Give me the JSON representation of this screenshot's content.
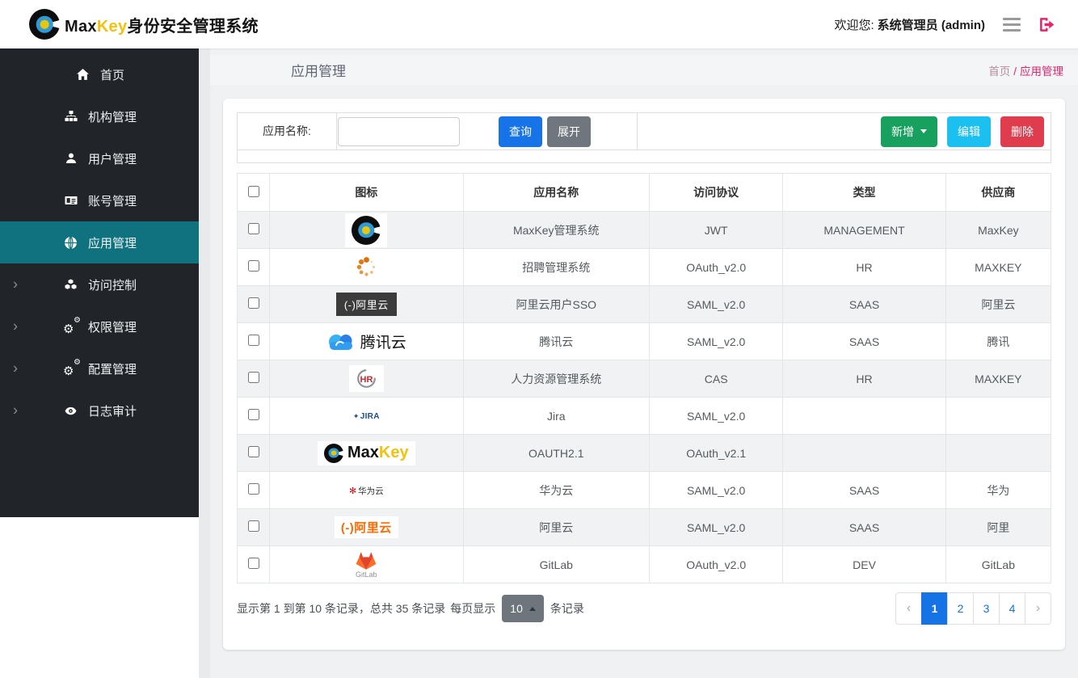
{
  "topbar": {
    "brand_max": "Max",
    "brand_key": "Key",
    "brand_suffix": "身份安全管理系统",
    "welcome_prefix": "欢迎您:",
    "user": "系统管理员 (admin)"
  },
  "sidebar": {
    "items": [
      {
        "id": "home",
        "icon": "home",
        "label": "首页"
      },
      {
        "id": "org",
        "icon": "sitemap",
        "label": "机构管理"
      },
      {
        "id": "users",
        "icon": "user",
        "label": "用户管理"
      },
      {
        "id": "account",
        "icon": "idcard",
        "label": "账号管理"
      },
      {
        "id": "apps",
        "icon": "globe",
        "label": "应用管理",
        "active": true
      },
      {
        "id": "access",
        "icon": "cubes",
        "label": "访问控制",
        "expandable": true
      },
      {
        "id": "perm",
        "icon": "gears",
        "label": "权限管理",
        "expandable": true
      },
      {
        "id": "config",
        "icon": "gears",
        "label": "配置管理",
        "expandable": true
      },
      {
        "id": "audit",
        "icon": "eye",
        "label": "日志审计",
        "expandable": true
      }
    ]
  },
  "page": {
    "title": "应用管理",
    "breadcrumb_home": "首页",
    "breadcrumb_sep": "/",
    "breadcrumb_current": "应用管理"
  },
  "toolbar": {
    "search_label": "应用名称:",
    "search_value": "",
    "query_label": "查询",
    "expand_label": "展开",
    "add_label": "新增",
    "edit_label": "编辑",
    "delete_label": "删除"
  },
  "table": {
    "columns": [
      "图标",
      "应用名称",
      "访问协议",
      "类型",
      "供应商"
    ],
    "rows": [
      {
        "icon": "maxkey",
        "app_name": "MaxKey管理系统",
        "protocol": "JWT",
        "type": "MANAGEMENT",
        "vendor": "MaxKey"
      },
      {
        "icon": "spinner",
        "app_name": "招聘管理系统",
        "protocol": "OAuth_v2.0",
        "type": "HR",
        "vendor": "MAXKEY"
      },
      {
        "icon": "aliyun_dark",
        "app_name": "阿里云用户SSO",
        "protocol": "SAML_v2.0",
        "type": "SAAS",
        "vendor": "阿里云"
      },
      {
        "icon": "tencent",
        "app_name": "腾讯云",
        "protocol": "SAML_v2.0",
        "type": "SAAS",
        "vendor": "腾讯"
      },
      {
        "icon": "hr",
        "app_name": "人力资源管理系统",
        "protocol": "CAS",
        "type": "HR",
        "vendor": "MAXKEY"
      },
      {
        "icon": "jira",
        "app_name": "Jira",
        "protocol": "SAML_v2.0",
        "type": "",
        "vendor": ""
      },
      {
        "icon": "maxkey_full",
        "app_name": "OAUTH2.1",
        "protocol": "OAuth_v2.1",
        "type": "",
        "vendor": ""
      },
      {
        "icon": "huawei",
        "app_name": "华为云",
        "protocol": "SAML_v2.0",
        "type": "SAAS",
        "vendor": "华为"
      },
      {
        "icon": "aliyun_orange",
        "app_name": "阿里云",
        "protocol": "SAML_v2.0",
        "type": "SAAS",
        "vendor": "阿里"
      },
      {
        "icon": "gitlab",
        "app_name": "GitLab",
        "protocol": "OAuth_v2.0",
        "type": "DEV",
        "vendor": "GitLab"
      }
    ]
  },
  "pagination": {
    "info": "显示第 1 到第 10 条记录，总共 35 条记录",
    "page_size_prefix": "每页显示",
    "page_size": "10",
    "page_size_suffix": "条记录",
    "prev": "‹",
    "next": "›",
    "pages": [
      "1",
      "2",
      "3",
      "4"
    ],
    "active_page": "1"
  },
  "colors": {
    "primary_blue": "#1674e8",
    "success_green": "#17a05e",
    "info_cyan": "#1bc0f0",
    "danger_red": "#df3c4e",
    "accent_pink": "#e7246b",
    "sidebar_active_teal": "#11727f",
    "brand_yellow": "#f2c20e",
    "sidebar_dark": "#212529"
  }
}
